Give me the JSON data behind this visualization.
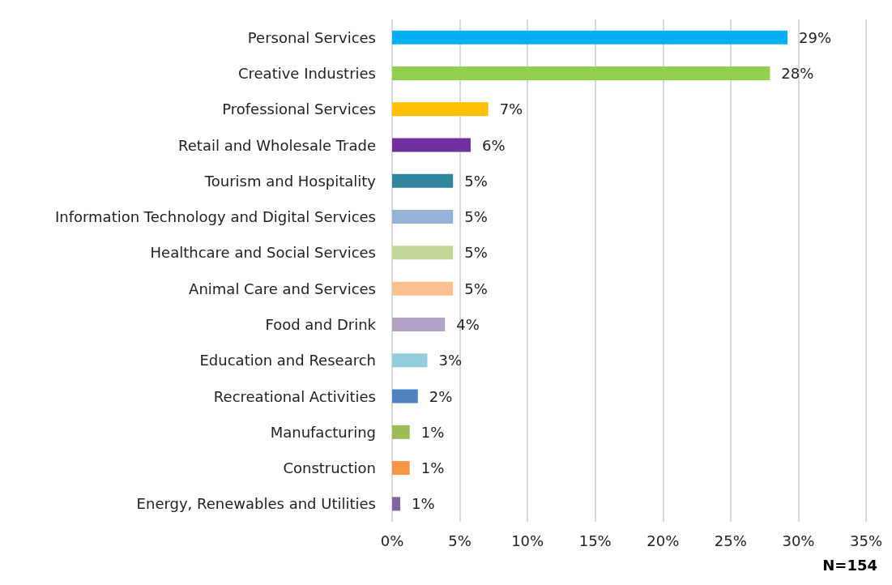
{
  "chart_data": {
    "type": "bar",
    "orientation": "horizontal",
    "categories": [
      "Personal Services",
      "Creative Industries",
      "Professional Services",
      "Retail and Wholesale Trade",
      "Tourism and Hospitality",
      "Information Technology and Digital Services",
      "Healthcare and Social Services",
      "Animal Care and Services",
      "Food and Drink",
      "Education and Research",
      "Recreational Activities",
      "Manufacturing",
      "Construction",
      "Energy, Renewables and Utilities"
    ],
    "values": [
      29.2,
      27.9,
      7.1,
      5.8,
      4.5,
      4.5,
      4.5,
      4.5,
      3.9,
      2.6,
      1.9,
      1.3,
      1.3,
      0.6
    ],
    "value_labels": [
      "29%",
      "28%",
      "7%",
      "6%",
      "5%",
      "5%",
      "5%",
      "5%",
      "4%",
      "3%",
      "2%",
      "1%",
      "1%",
      "1%"
    ],
    "colors": [
      "#00b0f0",
      "#92d050",
      "#ffc000",
      "#7030a0",
      "#31859c",
      "#95b3d7",
      "#c4d79b",
      "#fac090",
      "#b3a2c7",
      "#93cddd",
      "#4f81bd",
      "#9bbb59",
      "#f79646",
      "#8064a2"
    ],
    "xlim": [
      0,
      35
    ],
    "xticks": [
      {
        "value": 0,
        "label": "0%"
      },
      {
        "value": 5,
        "label": "5%"
      },
      {
        "value": 10,
        "label": "10%"
      },
      {
        "value": 15,
        "label": "15%"
      },
      {
        "value": 20,
        "label": "20%"
      },
      {
        "value": 25,
        "label": "25%"
      },
      {
        "value": 30,
        "label": "30%"
      },
      {
        "value": 35,
        "label": "35%"
      }
    ],
    "grid": "x",
    "annotations": [
      "N=154"
    ]
  }
}
